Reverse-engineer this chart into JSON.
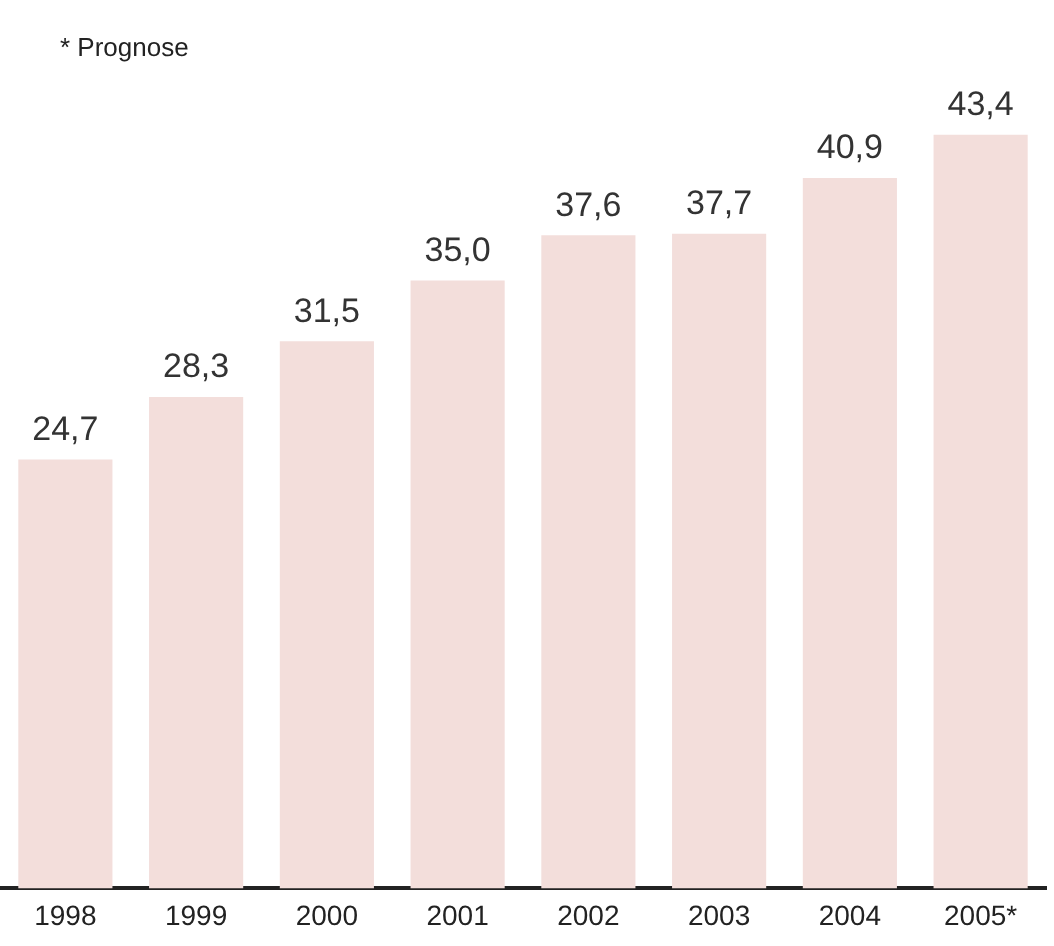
{
  "chart_data": {
    "type": "bar",
    "categories": [
      "1998",
      "1999",
      "2000",
      "2001",
      "2002",
      "2003",
      "2004",
      "2005*"
    ],
    "values": [
      24.7,
      28.3,
      31.5,
      35.0,
      37.6,
      37.7,
      40.9,
      43.4
    ],
    "value_labels": [
      "24,7",
      "28,3",
      "31,5",
      "35,0",
      "37,6",
      "37,7",
      "40,9",
      "43,4"
    ],
    "color": "#f3dedb",
    "tick_labels": "x",
    "grid": false,
    "legend": false,
    "annotations": [
      "* Prognose"
    ]
  }
}
